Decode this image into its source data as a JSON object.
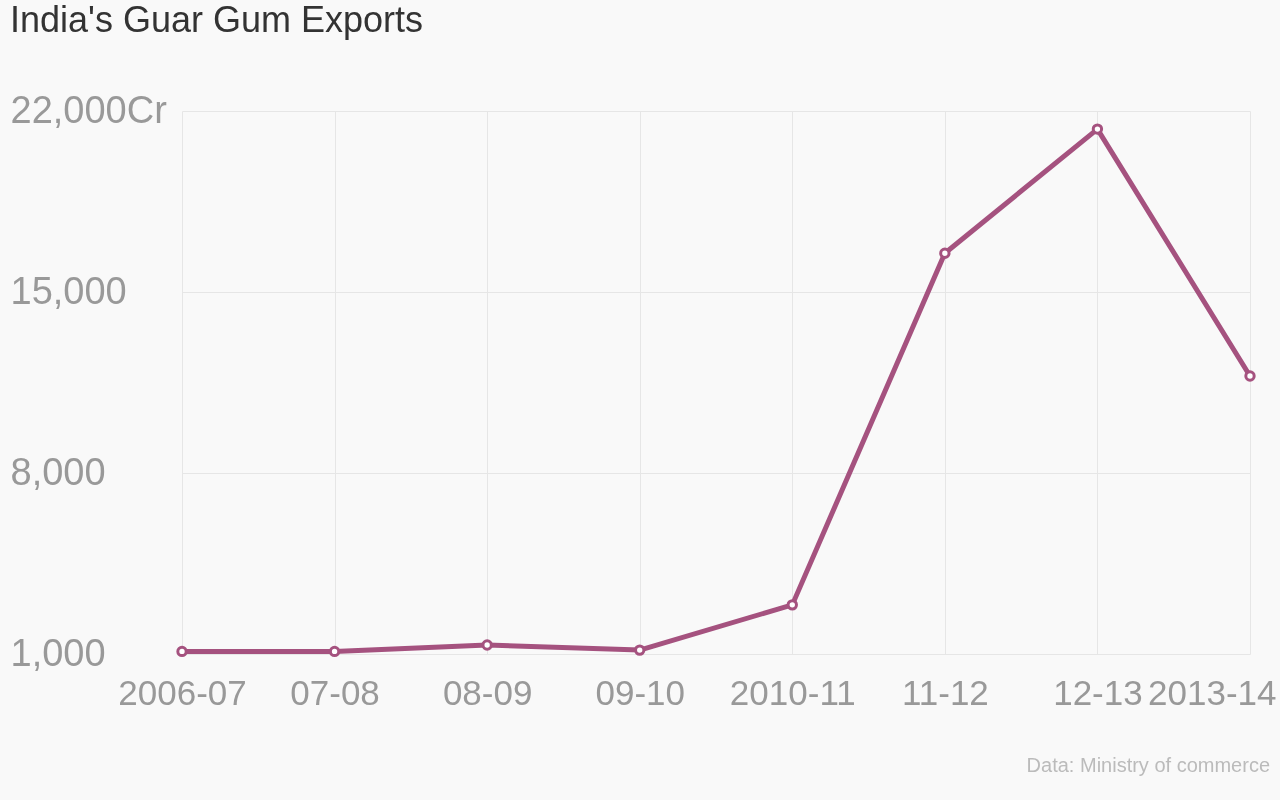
{
  "chart_data": {
    "type": "line",
    "title": "India's Guar Gum Exports",
    "categories": [
      "2006-07",
      "07-08",
      "08-09",
      "09-10",
      "2010-11",
      "11-12",
      "12-13",
      "2013-14"
    ],
    "series": [
      {
        "color": "#a5527f",
        "values": [
          1100,
          1100,
          1350,
          1150,
          2900,
          16500,
          21300,
          11750
        ]
      }
    ],
    "ylim": [
      1000,
      22000
    ],
    "yticks": [
      {
        "value": 1000,
        "label": "1,000"
      },
      {
        "value": 8000,
        "label": "8,000"
      },
      {
        "value": 15000,
        "label": "15,000"
      },
      {
        "value": 22000,
        "label": "22,000Cr"
      }
    ],
    "grid": true,
    "marker": "circle",
    "line_style": "solid",
    "annotations": [
      "Data: Ministry of commerce"
    ]
  }
}
